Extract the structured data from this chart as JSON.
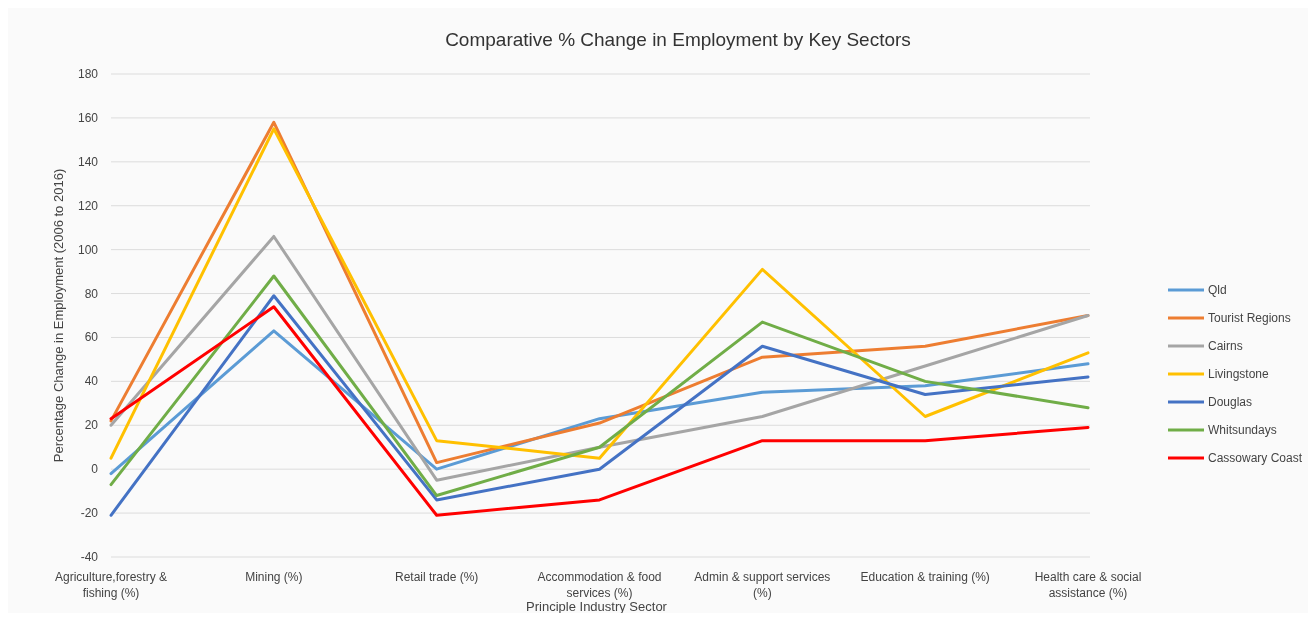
{
  "chart_data": {
    "type": "line",
    "title": "Comparative % Change in Employment by Key Sectors",
    "xlabel": "Principle Industry Sector",
    "ylabel": "Percentage Change in Employment (2006 to 2016)",
    "categories": [
      "Agriculture,forestry & fishing (%)",
      "Mining (%)",
      "Retail trade (%)",
      "Accommodation & food services (%)",
      "Admin & support services (%)",
      "Education & training (%)",
      "Health care & social assistance (%)"
    ],
    "series": [
      {
        "name": "Qld",
        "color": "#5b9bd5",
        "values": [
          -2,
          63,
          0,
          23,
          35,
          38,
          48
        ]
      },
      {
        "name": "Tourist Regions",
        "color": "#ed7d31",
        "values": [
          22,
          158,
          3,
          21,
          51,
          56,
          70
        ]
      },
      {
        "name": "Cairns",
        "color": "#a5a5a5",
        "values": [
          20,
          106,
          -5,
          10,
          24,
          47,
          70
        ]
      },
      {
        "name": "Livingstone",
        "color": "#ffc000",
        "values": [
          5,
          155,
          13,
          5,
          91,
          24,
          53
        ]
      },
      {
        "name": "Douglas",
        "color": "#4472c4",
        "values": [
          -21,
          79,
          -14,
          0,
          56,
          34,
          42
        ]
      },
      {
        "name": "Whitsundays",
        "color": "#70ad47",
        "values": [
          -7,
          88,
          -12,
          10,
          67,
          40,
          28
        ]
      },
      {
        "name": "Cassowary Coast",
        "color": "#ff0000",
        "values": [
          23,
          74,
          -21,
          -14,
          13,
          13,
          19
        ]
      }
    ],
    "ylim": [
      -40,
      180
    ],
    "yticks": [
      -40,
      -20,
      0,
      20,
      40,
      60,
      80,
      100,
      120,
      140,
      160,
      180
    ],
    "grid": "y",
    "legend": "right",
    "marker": "none",
    "line_style": "solid"
  }
}
